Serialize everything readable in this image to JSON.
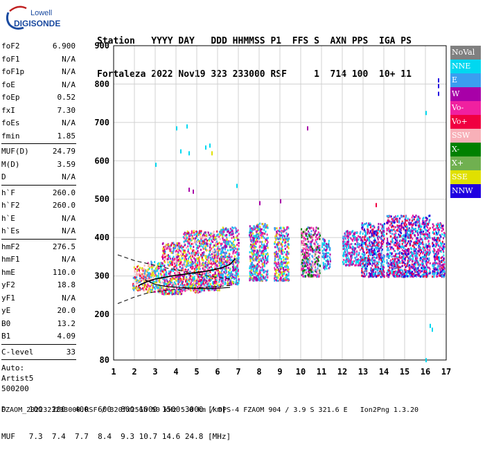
{
  "logo": {
    "line1": "Lowell",
    "line2": "DIGISONDE"
  },
  "header": {
    "labels": [
      "Station",
      "YYYY",
      "DAY",
      "DDD",
      "HHMMSS",
      "P1",
      "FFS",
      "S",
      "AXN",
      "PPS",
      "IGA",
      "PS"
    ],
    "values": [
      "Fortaleza",
      "2022",
      "Nov19",
      "323",
      "233000",
      "RSF",
      "",
      "1",
      "714",
      "100",
      "10+",
      "11"
    ],
    "line1": "Station   YYYY DAY   DDD HHMMSS P1  FFS S  AXN PPS  IGA PS",
    "line2": "Fortaleza 2022 Nov19 323 233000 RSF     1  714 100  10+ 11"
  },
  "params": {
    "group1": [
      {
        "name": "foF2",
        "value": "6.900"
      },
      {
        "name": "foF1",
        "value": "N/A"
      },
      {
        "name": "foF1p",
        "value": "N/A"
      },
      {
        "name": "foE",
        "value": "N/A"
      },
      {
        "name": "foEp",
        "value": "0.52"
      },
      {
        "name": "fxI",
        "value": "7.30"
      },
      {
        "name": "foEs",
        "value": "N/A"
      },
      {
        "name": "fmin",
        "value": "1.85"
      }
    ],
    "group2": [
      {
        "name": "MUF(D)",
        "value": "24.79"
      },
      {
        "name": "M(D)",
        "value": "3.59"
      },
      {
        "name": "D",
        "value": "N/A"
      }
    ],
    "group3": [
      {
        "name": "h`F",
        "value": "260.0"
      },
      {
        "name": "h`F2",
        "value": "260.0"
      },
      {
        "name": "h`E",
        "value": "N/A"
      },
      {
        "name": "h`Es",
        "value": "N/A"
      }
    ],
    "group4": [
      {
        "name": "hmF2",
        "value": "276.5"
      },
      {
        "name": "hmF1",
        "value": "N/A"
      },
      {
        "name": "hmE",
        "value": "110.0"
      },
      {
        "name": "yF2",
        "value": "18.8"
      },
      {
        "name": "yF1",
        "value": "N/A"
      },
      {
        "name": "yE",
        "value": "20.0"
      },
      {
        "name": "B0",
        "value": "13.2"
      },
      {
        "name": "B1",
        "value": "4.09"
      }
    ],
    "group5": [
      {
        "name": "C-level",
        "value": "33"
      }
    ],
    "auto": [
      "Auto:",
      "Artist5",
      "500200"
    ]
  },
  "legend": [
    {
      "label": "NoVal",
      "color": "#808080"
    },
    {
      "label": "NNE",
      "color": "#00d8f0"
    },
    {
      "label": "E",
      "color": "#3a9ef0"
    },
    {
      "label": "W",
      "color": "#a800a8"
    },
    {
      "label": "Vo-",
      "color": "#f020a0"
    },
    {
      "label": "Vo+",
      "color": "#f00040"
    },
    {
      "label": "SSW",
      "color": "#f8b0b8"
    },
    {
      "label": "X-",
      "color": "#008000"
    },
    {
      "label": "X+",
      "color": "#70b050"
    },
    {
      "label": "SSE",
      "color": "#e0e000"
    },
    {
      "label": "NNW",
      "color": "#2000e0"
    }
  ],
  "dmuf": {
    "line1": "D     100  200  400  600  800 1000 1500 3000 [km]",
    "line2": "MUF   7.3  7.4  7.7  8.4  9.3 10.7 14.6 24.8 [MHz]"
  },
  "footer": "FZAOM_2022323233000.RSF / 320fx256h 50 kHz 5.0 km / DPS-4 FZAOM 904 / 3.9 S 321.6 E   Ion2Png 1.3.20",
  "chart_data": {
    "type": "scatter",
    "xlim": [
      1,
      17
    ],
    "ylim": [
      80,
      900
    ],
    "xticks": [
      1,
      2,
      3,
      4,
      5,
      6,
      7,
      8,
      9,
      10,
      11,
      12,
      13,
      14,
      15,
      16,
      17
    ],
    "yticks": [
      80,
      200,
      300,
      400,
      500,
      600,
      700,
      800,
      900
    ],
    "grid": true,
    "xlabel": "",
    "ylabel": "",
    "echo_clusters": [
      {
        "x": [
          1.9,
          2.6
        ],
        "y": [
          265,
          330
        ],
        "dirs": [
          "SSE",
          "SSW",
          "Vo+",
          "E"
        ]
      },
      {
        "x": [
          2.6,
          3.3
        ],
        "y": [
          260,
          340
        ],
        "dirs": [
          "SSE",
          "SSW",
          "Vo-",
          "E",
          "NNE"
        ]
      },
      {
        "x": [
          3.3,
          4.3
        ],
        "y": [
          255,
          390
        ],
        "dirs": [
          "SSE",
          "Vo-",
          "Vo+",
          "SSW",
          "E",
          "W",
          "NNE"
        ]
      },
      {
        "x": [
          4.3,
          5.3
        ],
        "y": [
          260,
          420
        ],
        "dirs": [
          "Vo-",
          "Vo+",
          "SSW",
          "E",
          "W",
          "NNE",
          "SSE"
        ]
      },
      {
        "x": [
          5.3,
          6.1
        ],
        "y": [
          265,
          420
        ],
        "dirs": [
          "Vo-",
          "Vo+",
          "E",
          "W",
          "NNE",
          "SSE",
          "SSW"
        ]
      },
      {
        "x": [
          6.1,
          7.0
        ],
        "y": [
          280,
          430
        ],
        "dirs": [
          "E",
          "NNE",
          "SSE",
          "Vo-",
          "W"
        ]
      },
      {
        "x": [
          7.5,
          8.4
        ],
        "y": [
          290,
          440
        ],
        "dirs": [
          "SSE",
          "E",
          "NNE",
          "W",
          "Vo-"
        ]
      },
      {
        "x": [
          8.7,
          9.4
        ],
        "y": [
          290,
          430
        ],
        "dirs": [
          "SSE",
          "E",
          "NNE",
          "Vo-",
          "W"
        ]
      },
      {
        "x": [
          10.0,
          10.9
        ],
        "y": [
          300,
          430
        ],
        "dirs": [
          "SSW",
          "E",
          "W",
          "Vo-",
          "X-"
        ]
      },
      {
        "x": [
          11.0,
          11.4
        ],
        "y": [
          320,
          400
        ],
        "dirs": [
          "E",
          "NNE",
          "W"
        ]
      },
      {
        "x": [
          12.0,
          12.9
        ],
        "y": [
          330,
          420
        ],
        "dirs": [
          "E",
          "NNE",
          "W",
          "Vo-"
        ]
      },
      {
        "x": [
          12.9,
          14.0
        ],
        "y": [
          300,
          440
        ],
        "dirs": [
          "W",
          "E",
          "NNE",
          "Vo+",
          "NNW"
        ]
      },
      {
        "x": [
          14.1,
          15.2
        ],
        "y": [
          300,
          460
        ],
        "dirs": [
          "W",
          "E",
          "NNE",
          "Vo-",
          "Vo+",
          "NNW"
        ]
      },
      {
        "x": [
          15.2,
          16.2
        ],
        "y": [
          300,
          460
        ],
        "dirs": [
          "W",
          "E",
          "NNE",
          "Vo-",
          "Vo+",
          "NNW"
        ]
      },
      {
        "x": [
          16.3,
          16.9
        ],
        "y": [
          300,
          440
        ],
        "dirs": [
          "Vo-",
          "Vo+",
          "W",
          "E",
          "NNE",
          "NNW"
        ]
      }
    ],
    "isolated_points": [
      {
        "x": 4.0,
        "y": 690,
        "dir": "NNE"
      },
      {
        "x": 4.5,
        "y": 695,
        "dir": "NNE"
      },
      {
        "x": 4.2,
        "y": 630,
        "dir": "NNE"
      },
      {
        "x": 4.6,
        "y": 625,
        "dir": "NNE"
      },
      {
        "x": 5.4,
        "y": 640,
        "dir": "NNE"
      },
      {
        "x": 5.6,
        "y": 645,
        "dir": "NNE"
      },
      {
        "x": 4.6,
        "y": 530,
        "dir": "W"
      },
      {
        "x": 4.8,
        "y": 525,
        "dir": "W"
      },
      {
        "x": 5.7,
        "y": 625,
        "dir": "SSE"
      },
      {
        "x": 10.3,
        "y": 690,
        "dir": "W"
      },
      {
        "x": 16.6,
        "y": 800,
        "dir": "NNW"
      },
      {
        "x": 16.6,
        "y": 815,
        "dir": "NNW"
      },
      {
        "x": 16.6,
        "y": 780,
        "dir": "NNW"
      },
      {
        "x": 16.0,
        "y": 730,
        "dir": "NNE"
      },
      {
        "x": 16.2,
        "y": 175,
        "dir": "NNE"
      },
      {
        "x": 16.3,
        "y": 165,
        "dir": "NNE"
      },
      {
        "x": 16.0,
        "y": 85,
        "dir": "NNE"
      },
      {
        "x": 8.0,
        "y": 495,
        "dir": "W"
      },
      {
        "x": 9.0,
        "y": 500,
        "dir": "W"
      },
      {
        "x": 6.9,
        "y": 540,
        "dir": "NNE"
      },
      {
        "x": 3.0,
        "y": 595,
        "dir": "NNE"
      },
      {
        "x": 13.6,
        "y": 490,
        "dir": "Vo+"
      }
    ],
    "profile_curve": {
      "x": [
        2.2,
        2.6,
        3.0,
        3.4,
        3.8,
        4.2,
        4.6,
        5.0,
        5.4,
        5.8,
        6.2,
        6.6,
        6.85
      ],
      "y": [
        275,
        285,
        292,
        296,
        300,
        303,
        306,
        309,
        312,
        316,
        321,
        330,
        345
      ]
    },
    "bounds_upper": {
      "x": [
        1.2,
        2.0,
        2.8,
        3.6,
        4.4,
        5.2,
        6.0,
        6.6
      ],
      "y": [
        355,
        340,
        330,
        320,
        312,
        303,
        296,
        292
      ]
    },
    "bounds_lower": {
      "x": [
        1.2,
        2.0,
        2.6,
        3.4,
        4.2,
        5.0,
        5.8,
        6.6,
        6.8
      ],
      "y": [
        228,
        245,
        255,
        262,
        266,
        269,
        272,
        275,
        280
      ]
    },
    "low_branch": {
      "x": [
        2.5,
        3.0,
        3.6,
        4.2,
        4.8,
        5.4,
        6.0,
        6.6
      ],
      "y": [
        290,
        278,
        272,
        270,
        268,
        267,
        268,
        270
      ]
    }
  }
}
